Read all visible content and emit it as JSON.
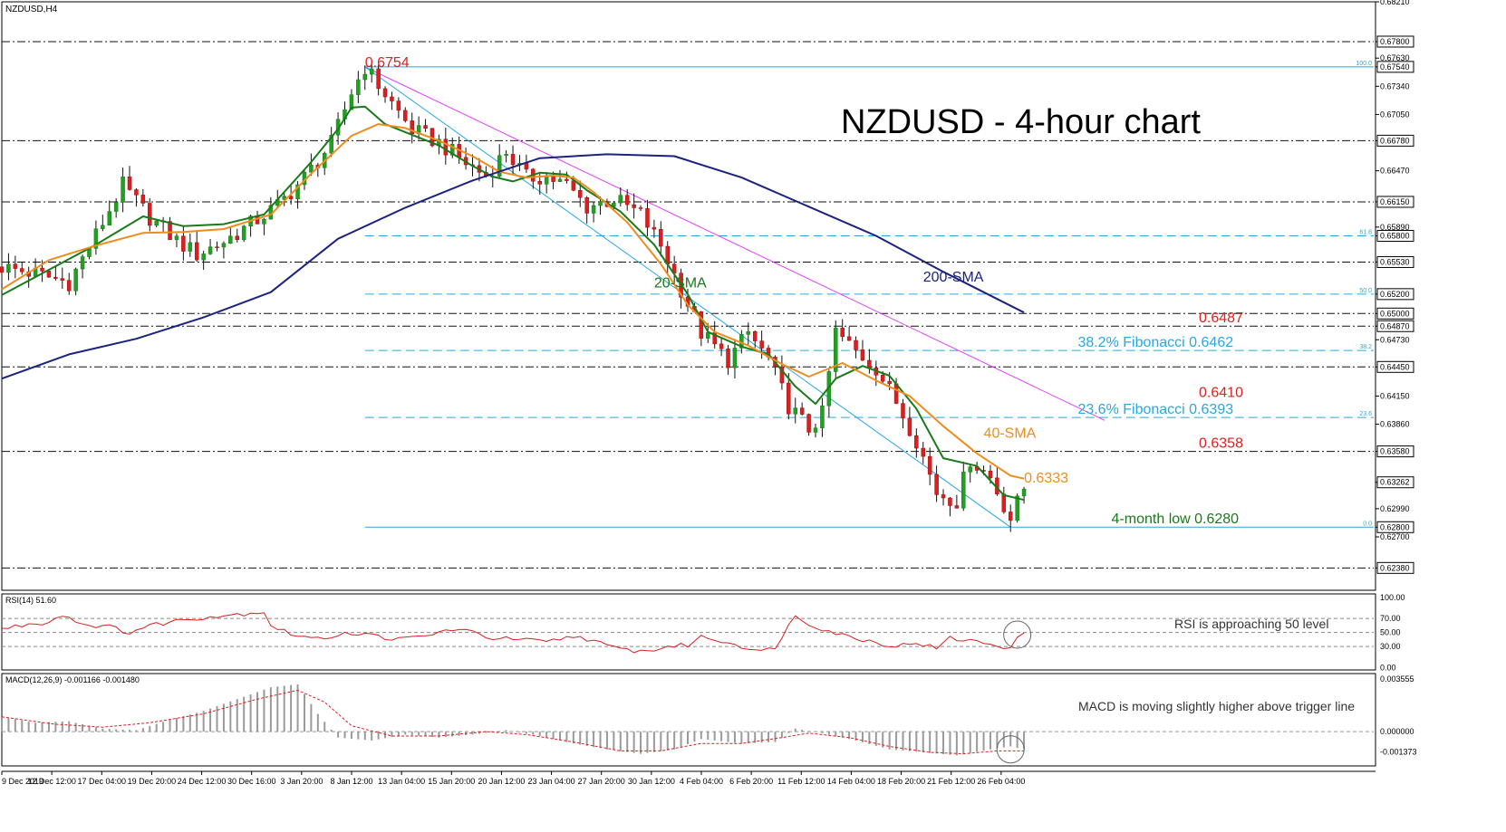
{
  "chart_data": [
    {
      "type": "candlestick",
      "symbol_label": "NZDUSD,H4",
      "title": "NZDUSD - 4-hour chart",
      "ylim": [
        0.6215,
        0.6821
      ],
      "x_tick_labels": [
        "9 Dec 2019",
        "12 Dec 12:00",
        "17 Dec 04:00",
        "19 Dec 20:00",
        "24 Dec 12:00",
        "30 Dec 16:00",
        "3 Jan 20:00",
        "8 Jan 12:00",
        "13 Jan 04:00",
        "15 Jan 20:00",
        "20 Jan 12:00",
        "23 Jan 04:00",
        "27 Jan 20:00",
        "30 Jan 12:00",
        "4 Feb 04:00",
        "6 Feb 20:00",
        "11 Feb 12:00",
        "14 Feb 04:00",
        "18 Feb 20:00",
        "21 Feb 12:00",
        "26 Feb 04:00"
      ],
      "y_tick_labels": [
        "0.68210",
        "0.67800",
        "0.67630",
        "0.67540",
        "0.67340",
        "0.67050",
        "0.66780",
        "0.66470",
        "0.66150",
        "0.65890",
        "0.65800",
        "0.65530",
        "0.65200",
        "0.65000",
        "0.64870",
        "0.64730",
        "0.64450",
        "0.64150",
        "0.63860",
        "0.63580",
        "0.63262",
        "0.62990",
        "0.62800",
        "0.62700",
        "0.62380"
      ],
      "candle_path": [
        [
          0,
          0.6548
        ],
        [
          5,
          0.6541
        ],
        [
          10,
          0.6532
        ],
        [
          14,
          0.6581
        ],
        [
          18,
          0.6632
        ],
        [
          22,
          0.6599
        ],
        [
          26,
          0.6575
        ],
        [
          29,
          0.6561
        ],
        [
          33,
          0.6574
        ],
        [
          37,
          0.6592
        ],
        [
          41,
          0.6611
        ],
        [
          45,
          0.664
        ],
        [
          49,
          0.6675
        ],
        [
          52,
          0.6728
        ],
        [
          54,
          0.6754
        ],
        [
          57,
          0.6726
        ],
        [
          61,
          0.6689
        ],
        [
          65,
          0.6676
        ],
        [
          69,
          0.6655
        ],
        [
          72,
          0.6642
        ],
        [
          75,
          0.6667
        ],
        [
          78,
          0.664
        ],
        [
          81,
          0.6641
        ],
        [
          84,
          0.6632
        ],
        [
          87,
          0.661
        ],
        [
          91,
          0.6618
        ],
        [
          95,
          0.6602
        ],
        [
          98,
          0.657
        ],
        [
          101,
          0.6525
        ],
        [
          104,
          0.648
        ],
        [
          108,
          0.6452
        ],
        [
          111,
          0.648
        ],
        [
          114,
          0.6453
        ],
        [
          117,
          0.6405
        ],
        [
          120,
          0.6381
        ],
        [
          122,
          0.6396
        ],
        [
          124,
          0.6481
        ],
        [
          127,
          0.6461
        ],
        [
          130,
          0.6444
        ],
        [
          133,
          0.6409
        ],
        [
          136,
          0.637
        ],
        [
          139,
          0.6316
        ],
        [
          142,
          0.6307
        ],
        [
          144,
          0.635
        ],
        [
          147,
          0.6331
        ],
        [
          150,
          0.6289
        ],
        [
          152,
          0.632
        ]
      ],
      "series": [
        {
          "name": "20-SMA",
          "color": "#1a7a1a",
          "points": [
            [
              0,
              0.6519
            ],
            [
              7,
              0.6545
            ],
            [
              14,
              0.6571
            ],
            [
              21,
              0.66
            ],
            [
              27,
              0.659
            ],
            [
              33,
              0.6592
            ],
            [
              39,
              0.6602
            ],
            [
              46,
              0.6656
            ],
            [
              50,
              0.669
            ],
            [
              52,
              0.6712
            ],
            [
              54,
              0.6713
            ],
            [
              57,
              0.6695
            ],
            [
              61,
              0.6684
            ],
            [
              65,
              0.6673
            ],
            [
              70,
              0.6652
            ],
            [
              73,
              0.6641
            ],
            [
              76,
              0.6636
            ],
            [
              80,
              0.6645
            ],
            [
              84,
              0.6643
            ],
            [
              87,
              0.6627
            ],
            [
              92,
              0.6605
            ],
            [
              97,
              0.6571
            ],
            [
              102,
              0.652
            ],
            [
              105,
              0.6481
            ],
            [
              110,
              0.6466
            ],
            [
              114,
              0.6458
            ],
            [
              118,
              0.6425
            ],
            [
              121,
              0.6407
            ],
            [
              124,
              0.6433
            ],
            [
              128,
              0.6446
            ],
            [
              132,
              0.6436
            ],
            [
              136,
              0.6402
            ],
            [
              140,
              0.6351
            ],
            [
              145,
              0.6343
            ],
            [
              149,
              0.6313
            ],
            [
              152,
              0.6308
            ]
          ]
        },
        {
          "name": "40-SMA",
          "color": "#f08c1e",
          "points": [
            [
              0,
              0.6525
            ],
            [
              7,
              0.6555
            ],
            [
              14,
              0.657
            ],
            [
              21,
              0.6583
            ],
            [
              27,
              0.6584
            ],
            [
              33,
              0.6587
            ],
            [
              40,
              0.6602
            ],
            [
              46,
              0.6644
            ],
            [
              52,
              0.6683
            ],
            [
              56,
              0.6695
            ],
            [
              60,
              0.6691
            ],
            [
              65,
              0.6678
            ],
            [
              70,
              0.6662
            ],
            [
              74,
              0.6646
            ],
            [
              78,
              0.664
            ],
            [
              82,
              0.6642
            ],
            [
              85,
              0.664
            ],
            [
              88,
              0.6625
            ],
            [
              93,
              0.6594
            ],
            [
              98,
              0.6551
            ],
            [
              102,
              0.6509
            ],
            [
              106,
              0.6481
            ],
            [
              111,
              0.6467
            ],
            [
              116,
              0.6448
            ],
            [
              120,
              0.6435
            ],
            [
              125,
              0.6449
            ],
            [
              130,
              0.6431
            ],
            [
              135,
              0.6415
            ],
            [
              140,
              0.6384
            ],
            [
              145,
              0.6356
            ],
            [
              150,
              0.6333
            ],
            [
              152,
              0.633
            ]
          ]
        },
        {
          "name": "200-SMA",
          "color": "#1a237e",
          "points": [
            [
              0,
              0.6433
            ],
            [
              10,
              0.6458
            ],
            [
              20,
              0.6474
            ],
            [
              30,
              0.6496
            ],
            [
              40,
              0.6522
            ],
            [
              50,
              0.6577
            ],
            [
              60,
              0.6609
            ],
            [
              70,
              0.6637
            ],
            [
              80,
              0.666
            ],
            [
              90,
              0.6664
            ],
            [
              100,
              0.6662
            ],
            [
              110,
              0.664
            ],
            [
              120,
              0.661
            ],
            [
              130,
              0.658
            ],
            [
              140,
              0.6543
            ],
            [
              150,
              0.6508
            ],
            [
              152,
              0.6501
            ]
          ]
        }
      ],
      "fibonacci": [
        {
          "level": "100.0",
          "price": 0.6754
        },
        {
          "level": "61.8",
          "price": 0.658
        },
        {
          "level": "50.0",
          "price": 0.652
        },
        {
          "level": "38.2",
          "price": 0.6462
        },
        {
          "level": "23.6",
          "price": 0.6393
        },
        {
          "level": "0.0",
          "price": 0.628
        }
      ],
      "horizontal_levels": [
        0.678,
        0.6678,
        0.6615,
        0.6553,
        0.65,
        0.6487,
        0.6445,
        0.6358,
        0.6238
      ],
      "trendlines": [
        {
          "color": "#e040fb",
          "from": [
            54,
            0.6754
          ],
          "to": [
            164,
            0.639
          ]
        },
        {
          "color": "#26a9e0",
          "from": [
            54,
            0.6754
          ],
          "to": [
            150,
            0.628
          ]
        }
      ],
      "annotations": [
        {
          "text": "0.6754",
          "color": "#e02020",
          "x": 54,
          "price": 0.6754
        },
        {
          "text": "20-SMA",
          "color": "#1a7a1a",
          "x": 97,
          "price": 0.6527
        },
        {
          "text": "200-SMA",
          "color": "#1a237e",
          "x": 137,
          "price": 0.6533
        },
        {
          "text": "0.6487",
          "color": "#e02020",
          "x": 178,
          "price": 0.6491
        },
        {
          "text": "38.2% Fibonacci 0.6462",
          "color": "#26a9e0",
          "x": 160,
          "price": 0.6466
        },
        {
          "text": "0.6410",
          "color": "#e02020",
          "x": 178,
          "price": 0.6414
        },
        {
          "text": "23.6% Fibonacci 0.6393",
          "color": "#26a9e0",
          "x": 160,
          "price": 0.6397
        },
        {
          "text": "40-SMA",
          "color": "#f08c1e",
          "x": 146,
          "price": 0.6372
        },
        {
          "text": "0.6358",
          "color": "#e02020",
          "x": 178,
          "price": 0.6362
        },
        {
          "text": "0.6333",
          "color": "#f08c1e",
          "x": 152,
          "price": 0.6326
        },
        {
          "text": "4-month low 0.6280",
          "color": "#1a7a1a",
          "x": 165,
          "price": 0.6284
        }
      ]
    },
    {
      "type": "line",
      "label": "RSI(14) 51.60",
      "ylim": [
        0,
        100
      ],
      "levels": [
        70,
        50,
        30
      ],
      "y_tick_labels": [
        "100.00",
        "70.00",
        "50.00",
        "30.00",
        "0.00"
      ],
      "note": "RSI is approaching 50 level",
      "values": [
        [
          0,
          55
        ],
        [
          4,
          62
        ],
        [
          7,
          65
        ],
        [
          9,
          76
        ],
        [
          12,
          62
        ],
        [
          16,
          58
        ],
        [
          19,
          50
        ],
        [
          22,
          60
        ],
        [
          26,
          67
        ],
        [
          30,
          72
        ],
        [
          35,
          76
        ],
        [
          39,
          80
        ],
        [
          40,
          60
        ],
        [
          43,
          48
        ],
        [
          47,
          40
        ],
        [
          51,
          50
        ],
        [
          55,
          46
        ],
        [
          59,
          40
        ],
        [
          63,
          45
        ],
        [
          67,
          55
        ],
        [
          70,
          50
        ],
        [
          73,
          42
        ],
        [
          77,
          40
        ],
        [
          81,
          36
        ],
        [
          85,
          45
        ],
        [
          88,
          39
        ],
        [
          90,
          30
        ],
        [
          93,
          25
        ],
        [
          96,
          23
        ],
        [
          99,
          30
        ],
        [
          102,
          32
        ],
        [
          104,
          44
        ],
        [
          108,
          36
        ],
        [
          111,
          28
        ],
        [
          113,
          22
        ],
        [
          115,
          30
        ],
        [
          118,
          74
        ],
        [
          120,
          63
        ],
        [
          123,
          52
        ],
        [
          126,
          44
        ],
        [
          130,
          36
        ],
        [
          133,
          30
        ],
        [
          136,
          36
        ],
        [
          139,
          27
        ],
        [
          141,
          42
        ],
        [
          144,
          38
        ],
        [
          147,
          34
        ],
        [
          150,
          28
        ],
        [
          152,
          52
        ]
      ]
    },
    {
      "type": "bar",
      "label": "MACD(12,26,9) -0.001166 -0.001480",
      "y_tick_labels": [
        "0.003555",
        "0.000000",
        "-0.001373"
      ],
      "ylim": [
        -0.00195,
        0.00356
      ],
      "note": "MACD is moving slightly higher above trigger line",
      "values": [
        [
          0,
          0.001
        ],
        [
          5,
          0.0006
        ],
        [
          10,
          0.0007
        ],
        [
          15,
          0.0002
        ],
        [
          20,
          0.0001
        ],
        [
          25,
          0.0008
        ],
        [
          30,
          0.0014
        ],
        [
          35,
          0.0022
        ],
        [
          40,
          0.003
        ],
        [
          44,
          0.0032
        ],
        [
          47,
          0.0012
        ],
        [
          50,
          -0.0004
        ],
        [
          55,
          -0.0006
        ],
        [
          60,
          -0.0002
        ],
        [
          65,
          -0.0004
        ],
        [
          70,
          -0.0002
        ],
        [
          75,
          0.0001
        ],
        [
          80,
          -0.0003
        ],
        [
          85,
          -0.0008
        ],
        [
          90,
          -0.0012
        ],
        [
          95,
          -0.0015
        ],
        [
          100,
          -0.0012
        ],
        [
          104,
          -0.0005
        ],
        [
          110,
          -0.0008
        ],
        [
          115,
          -0.0007
        ],
        [
          118,
          0.0002
        ],
        [
          122,
          -0.0001
        ],
        [
          127,
          -0.0006
        ],
        [
          132,
          -0.0012
        ],
        [
          137,
          -0.0014
        ],
        [
          142,
          -0.0016
        ],
        [
          147,
          -0.0012
        ],
        [
          150,
          -0.001
        ],
        [
          152,
          -0.0012
        ]
      ],
      "signal": [
        [
          0,
          0.001
        ],
        [
          8,
          0.0005
        ],
        [
          15,
          0.0003
        ],
        [
          22,
          0.0006
        ],
        [
          30,
          0.0012
        ],
        [
          38,
          0.0022
        ],
        [
          44,
          0.0028
        ],
        [
          48,
          0.002
        ],
        [
          52,
          0.0004
        ],
        [
          58,
          -0.0003
        ],
        [
          65,
          -0.0003
        ],
        [
          72,
          0.0
        ],
        [
          78,
          -0.0002
        ],
        [
          85,
          -0.0007
        ],
        [
          92,
          -0.0013
        ],
        [
          98,
          -0.0013
        ],
        [
          104,
          -0.0008
        ],
        [
          110,
          -0.0008
        ],
        [
          116,
          -0.0004
        ],
        [
          120,
          -0.0001
        ],
        [
          126,
          -0.0004
        ],
        [
          132,
          -0.001
        ],
        [
          138,
          -0.0014
        ],
        [
          143,
          -0.0015
        ],
        [
          148,
          -0.0013
        ],
        [
          152,
          -0.0013
        ]
      ]
    }
  ]
}
